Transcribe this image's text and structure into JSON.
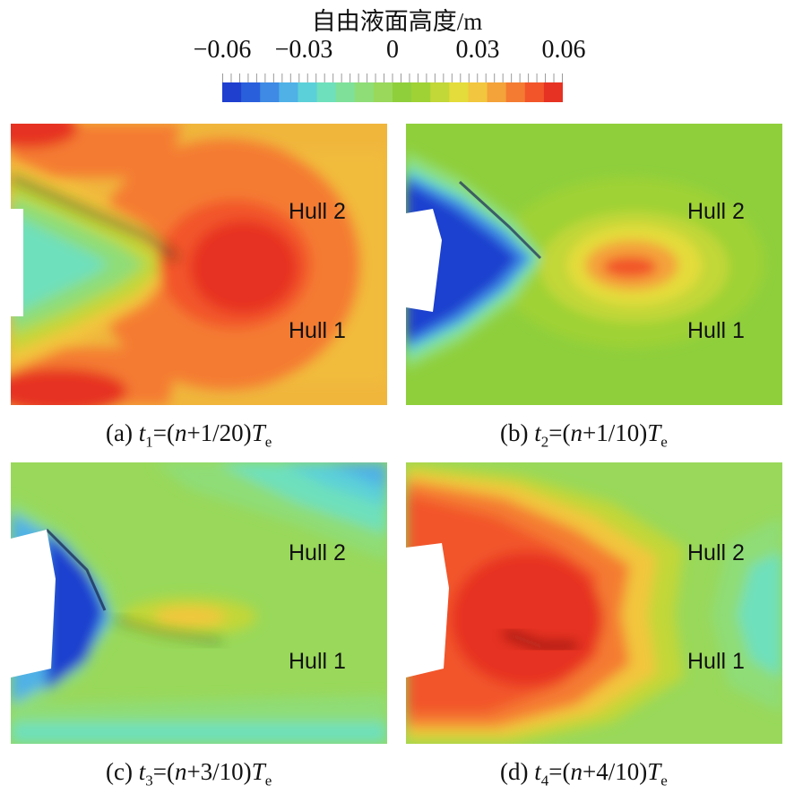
{
  "colorbar": {
    "title": "自由液面高度/m",
    "ticks": [
      "−0.06",
      "−0.03",
      "0",
      "0.03",
      "0.06"
    ],
    "colors": [
      "#1f3fcf",
      "#2a5fdc",
      "#3e8ae4",
      "#4fb1e6",
      "#5cd0d8",
      "#6ee0bc",
      "#7fe09a",
      "#8fdd77",
      "#99d85a",
      "#8fcf3c",
      "#9fd235",
      "#c2d738",
      "#e4dc3a",
      "#f2c63e",
      "#f4a23a",
      "#f47b32",
      "#f2552a",
      "#e63222"
    ]
  },
  "chart_data": [
    {
      "type": "heatmap",
      "panel": "a",
      "caption": {
        "prefix": "(a) ",
        "t": "t",
        "sub": "1",
        "mid": "=(",
        "n": "n",
        "frac": "+1/20)",
        "T": "T",
        "Tsub": "e"
      },
      "labels": [
        "Hull 2",
        "Hull 1"
      ],
      "colorbar_range": [
        -0.06,
        0.06
      ],
      "background_level": 0.035,
      "peak_level": 0.06,
      "trough_level": -0.02
    },
    {
      "type": "heatmap",
      "panel": "b",
      "caption": {
        "prefix": "(b) ",
        "t": "t",
        "sub": "2",
        "mid": "=(",
        "n": "n",
        "frac": "+1/10)",
        "T": "T",
        "Tsub": "e"
      },
      "labels": [
        "Hull 2",
        "Hull 1"
      ],
      "colorbar_range": [
        -0.06,
        0.06
      ],
      "background_level": 0.0,
      "peak_level": 0.05,
      "trough_level": -0.06
    },
    {
      "type": "heatmap",
      "panel": "c",
      "caption": {
        "prefix": "(c) ",
        "t": "t",
        "sub": "3",
        "mid": "=(",
        "n": "n",
        "frac": "+3/10)",
        "T": "T",
        "Tsub": "e"
      },
      "labels": [
        "Hull 2",
        "Hull 1"
      ],
      "colorbar_range": [
        -0.06,
        0.06
      ],
      "background_level": -0.005,
      "peak_level": 0.04,
      "trough_level": -0.06
    },
    {
      "type": "heatmap",
      "panel": "d",
      "caption": {
        "prefix": "(d) ",
        "t": "t",
        "sub": "4",
        "mid": "=(",
        "n": "n",
        "frac": "+4/10)",
        "T": "T",
        "Tsub": "e"
      },
      "labels": [
        "Hull 2",
        "Hull 1"
      ],
      "colorbar_range": [
        -0.06,
        0.06
      ],
      "background_level": 0.0,
      "peak_level": 0.06,
      "trough_level": -0.03
    }
  ]
}
